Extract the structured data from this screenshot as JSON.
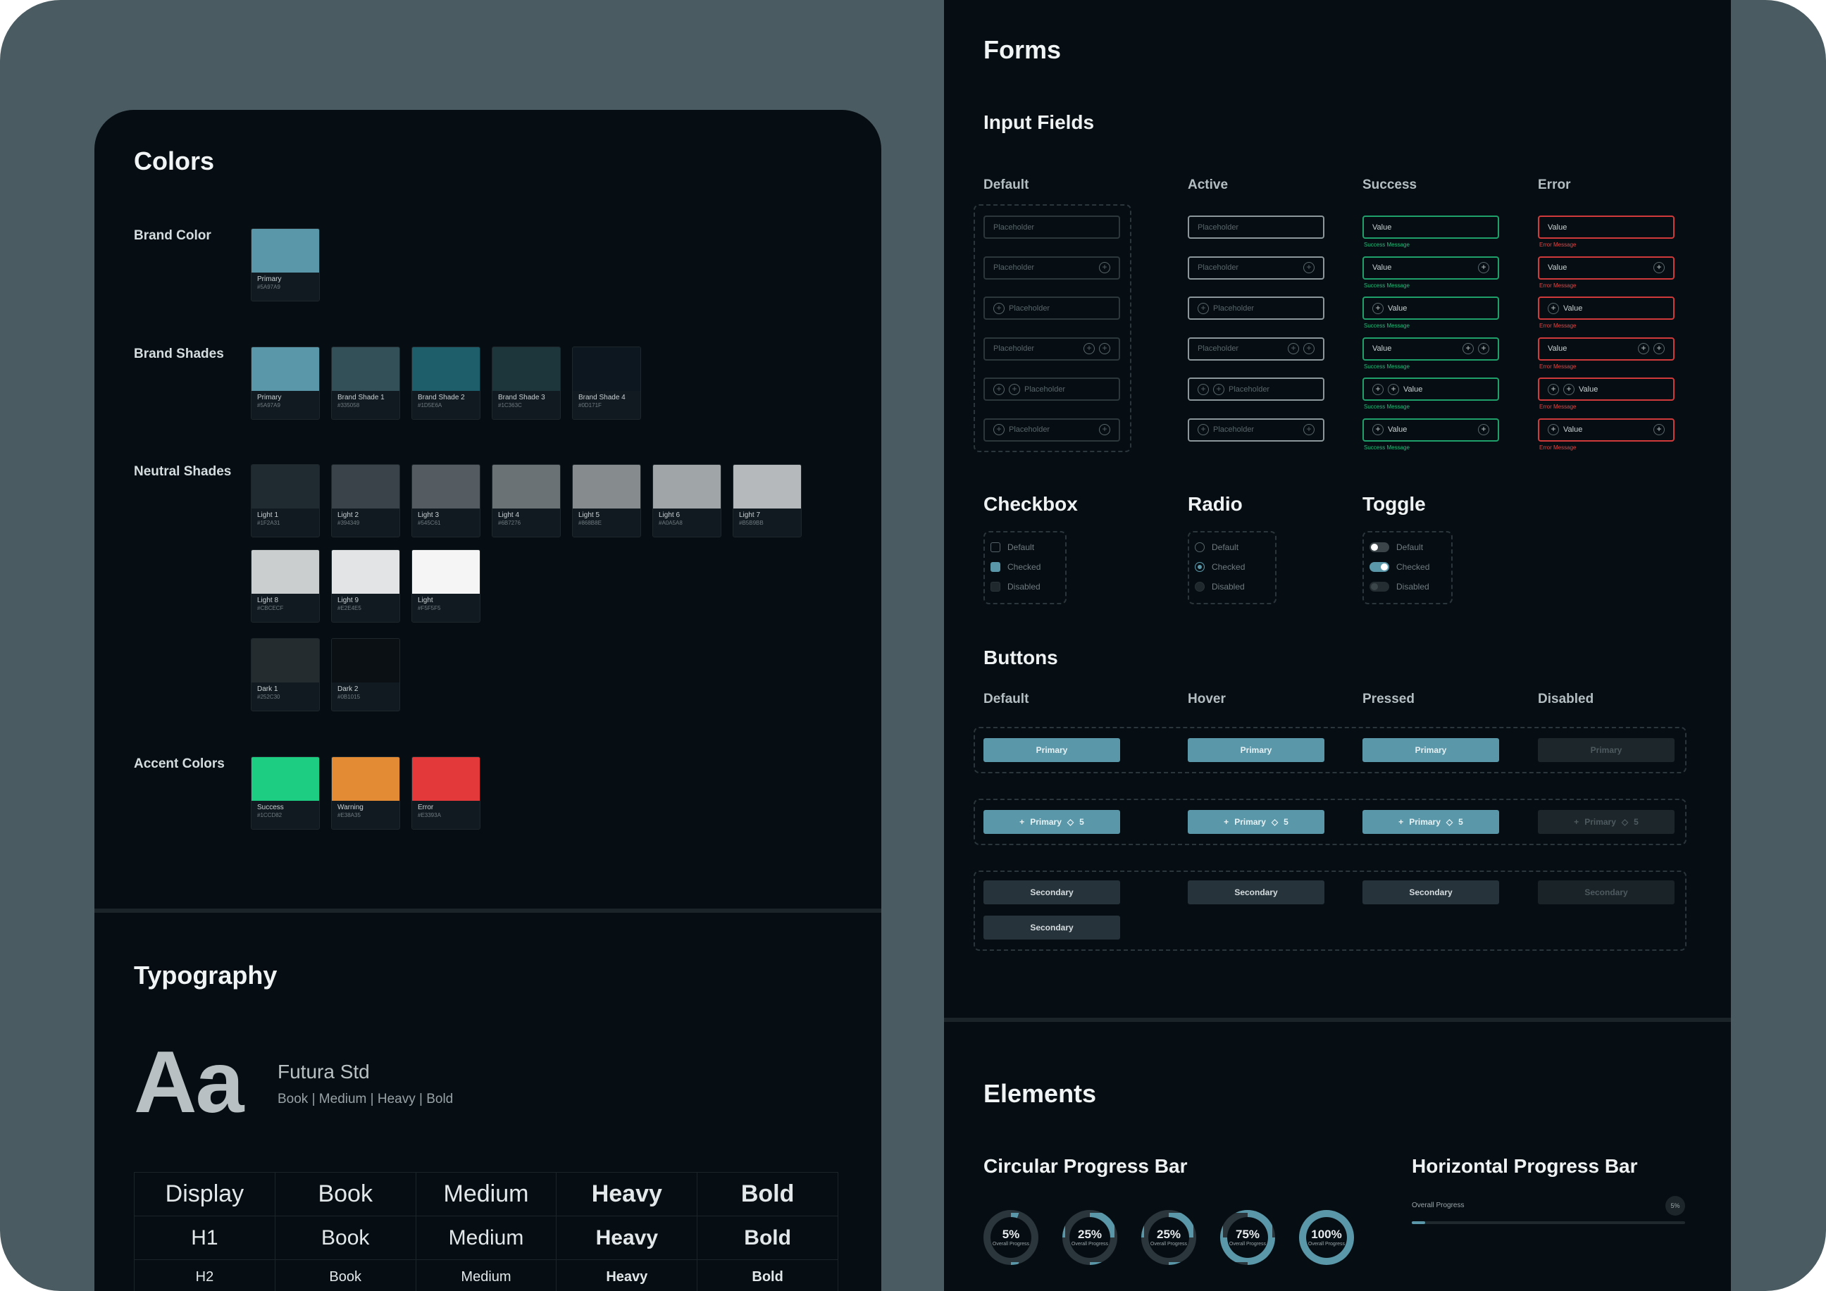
{
  "colors": {
    "title": "Colors",
    "brand_label": "Brand Color",
    "shades_label": "Brand Shades",
    "neutral_label": "Neutral Shades",
    "accent_label": "Accent Colors",
    "brand": [
      {
        "name": "Primary",
        "hex": "#5A97A9",
        "color": "#5a97a9"
      }
    ],
    "shades": [
      {
        "name": "Primary",
        "hex": "#5A97A9",
        "color": "#5a97a9"
      },
      {
        "name": "Brand Shade 1",
        "hex": "#335058",
        "color": "#335058"
      },
      {
        "name": "Brand Shade 2",
        "hex": "#1D5E6A",
        "color": "#1d5e6a"
      },
      {
        "name": "Brand Shade 3",
        "hex": "#1C363C",
        "color": "#1c363c"
      },
      {
        "name": "Brand Shade 4",
        "hex": "#0D171F",
        "color": "#0d171f"
      }
    ],
    "neutral_row1": [
      {
        "name": "Light 1",
        "hex": "#1F2A31",
        "color": "#1f2a31"
      },
      {
        "name": "Light 2",
        "hex": "#394349",
        "color": "#394349"
      },
      {
        "name": "Light 3",
        "hex": "#545C61",
        "color": "#545c61"
      },
      {
        "name": "Light 4",
        "hex": "#6B7276",
        "color": "#6b7276"
      },
      {
        "name": "Light 5",
        "hex": "#868B8E",
        "color": "#868b8e"
      },
      {
        "name": "Light 6",
        "hex": "#A0A5A8",
        "color": "#a0a5a8"
      },
      {
        "name": "Light 7",
        "hex": "#B5B9BB",
        "color": "#b5b9bb"
      }
    ],
    "neutral_row2": [
      {
        "name": "Light 8",
        "hex": "#CBCECF",
        "color": "#cbcecf"
      },
      {
        "name": "Light 9",
        "hex": "#E2E4E5",
        "color": "#e2e4e5"
      },
      {
        "name": "Light",
        "hex": "#F5F5F5",
        "color": "#f5f5f5"
      }
    ],
    "neutral_row3": [
      {
        "name": "Dark 1",
        "hex": "#252C30",
        "color": "#252c30"
      },
      {
        "name": "Dark 2",
        "hex": "#0B1015",
        "color": "#0b1015"
      }
    ],
    "accents": [
      {
        "name": "Success",
        "hex": "#1CCD82",
        "color": "#1ccd82"
      },
      {
        "name": "Warning",
        "hex": "#E38A35",
        "color": "#e38a35"
      },
      {
        "name": "Error",
        "hex": "#E3393A",
        "color": "#e3393a"
      }
    ]
  },
  "typography": {
    "title": "Typography",
    "sample": "Aa",
    "family": "Futura Std",
    "weights": "Book  |  Medium  |  Heavy  |  Bold",
    "rows": [
      [
        "Display",
        "Book",
        "Medium",
        "Heavy",
        "Bold"
      ],
      [
        "H1",
        "Book",
        "Medium",
        "Heavy",
        "Bold"
      ],
      [
        "H2",
        "Book",
        "Medium",
        "Heavy",
        "Bold"
      ]
    ]
  },
  "forms": {
    "title": "Forms",
    "input_title": "Input Fields",
    "columns": [
      "Default",
      "Active",
      "Success",
      "Error"
    ],
    "placeholder": "Placeholder",
    "value": "Value",
    "success_msg": "Success Message",
    "error_msg": "Error Message",
    "checkbox_title": "Checkbox",
    "radio_title": "Radio",
    "toggle_title": "Toggle",
    "options": [
      "Default",
      "Checked",
      "Disabled"
    ],
    "buttons_title": "Buttons",
    "button_columns": [
      "Default",
      "Hover",
      "Pressed",
      "Disabled"
    ],
    "primary_label": "Primary",
    "secondary_label": "Secondary",
    "badge_count": "5"
  },
  "elements": {
    "title": "Elements",
    "circular_title": "Circular Progress Bar",
    "horizontal_title": "Horizontal Progress Bar",
    "circular_caption": "Overall Progress",
    "circular": [
      {
        "label": "5%",
        "value": 0.05
      },
      {
        "label": "25%",
        "value": 0.25
      },
      {
        "label": "25%",
        "value": 0.25
      },
      {
        "label": "75%",
        "value": 0.75
      },
      {
        "label": "100%",
        "value": 1.0
      }
    ],
    "horizontal": {
      "label": "Overall Progress",
      "value_label": "5%",
      "value": 0.05
    }
  },
  "accent_color": "#5a97a9"
}
